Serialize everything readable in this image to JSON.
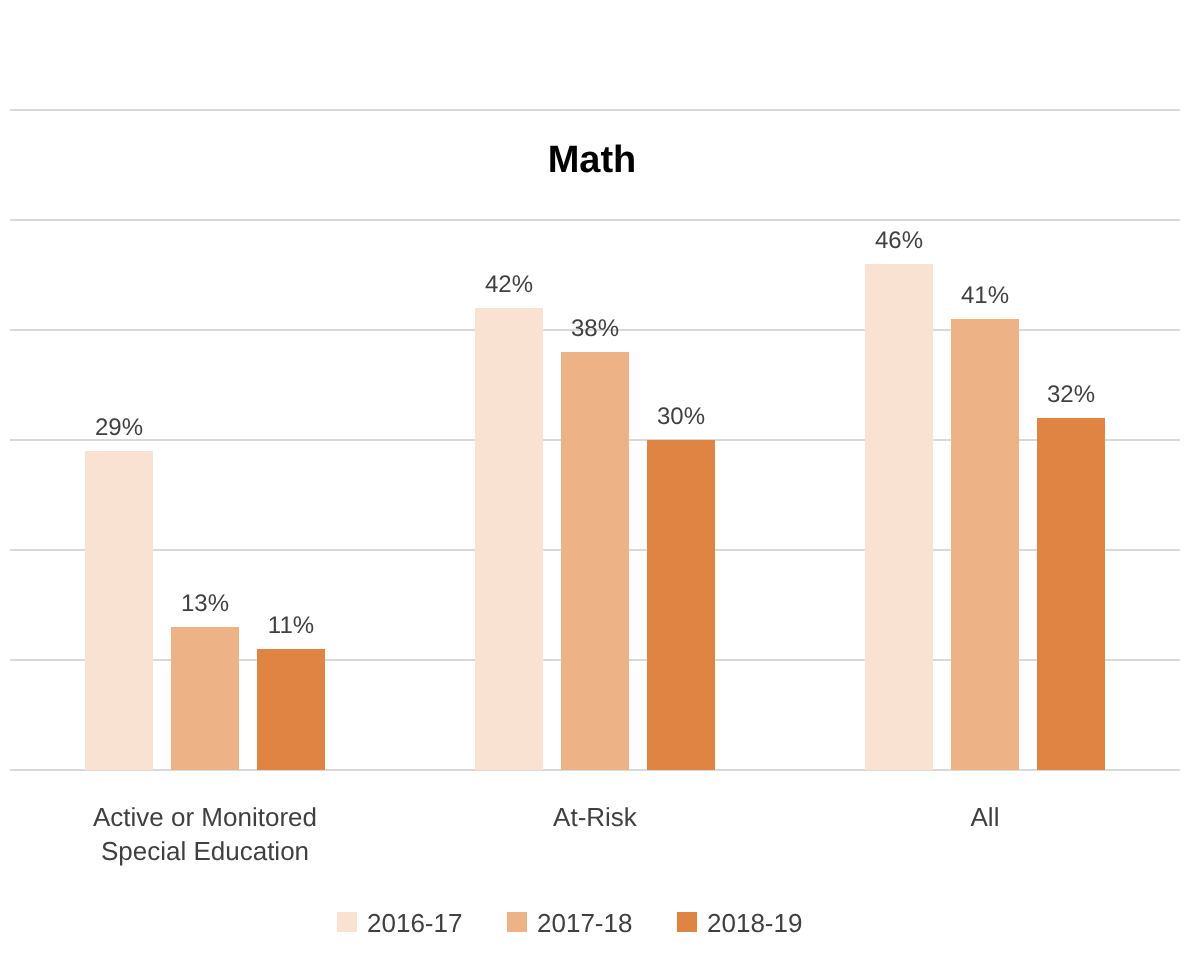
{
  "chart_data": {
    "type": "bar",
    "title": "Math",
    "categories": [
      "Active or Monitored Special Education",
      "At-Risk",
      "All"
    ],
    "series": [
      {
        "name": "2016-17",
        "color": "#fae2d2",
        "values": [
          29,
          42,
          46
        ],
        "value_labels": [
          "29%",
          "42%",
          "46%"
        ]
      },
      {
        "name": "2017-18",
        "color": "#edb286",
        "values": [
          13,
          38,
          41
        ],
        "value_labels": [
          "13%",
          "38%",
          "41%"
        ]
      },
      {
        "name": "2018-19",
        "color": "#e08443",
        "values": [
          11,
          30,
          32
        ],
        "value_labels": [
          "11%",
          "30%",
          "32%"
        ]
      }
    ],
    "ylim": [
      0,
      60
    ],
    "yticks": [
      {
        "value": 0,
        "label": null
      },
      {
        "value": 10,
        "label": null
      },
      {
        "value": 20,
        "label": null
      },
      {
        "value": 30,
        "label": null
      },
      {
        "value": 40,
        "label": null
      },
      {
        "value": 50,
        "label": null
      },
      {
        "value": 60,
        "label": null
      }
    ],
    "grid": "y",
    "tick_labels": "x",
    "legend": "bottom"
  }
}
